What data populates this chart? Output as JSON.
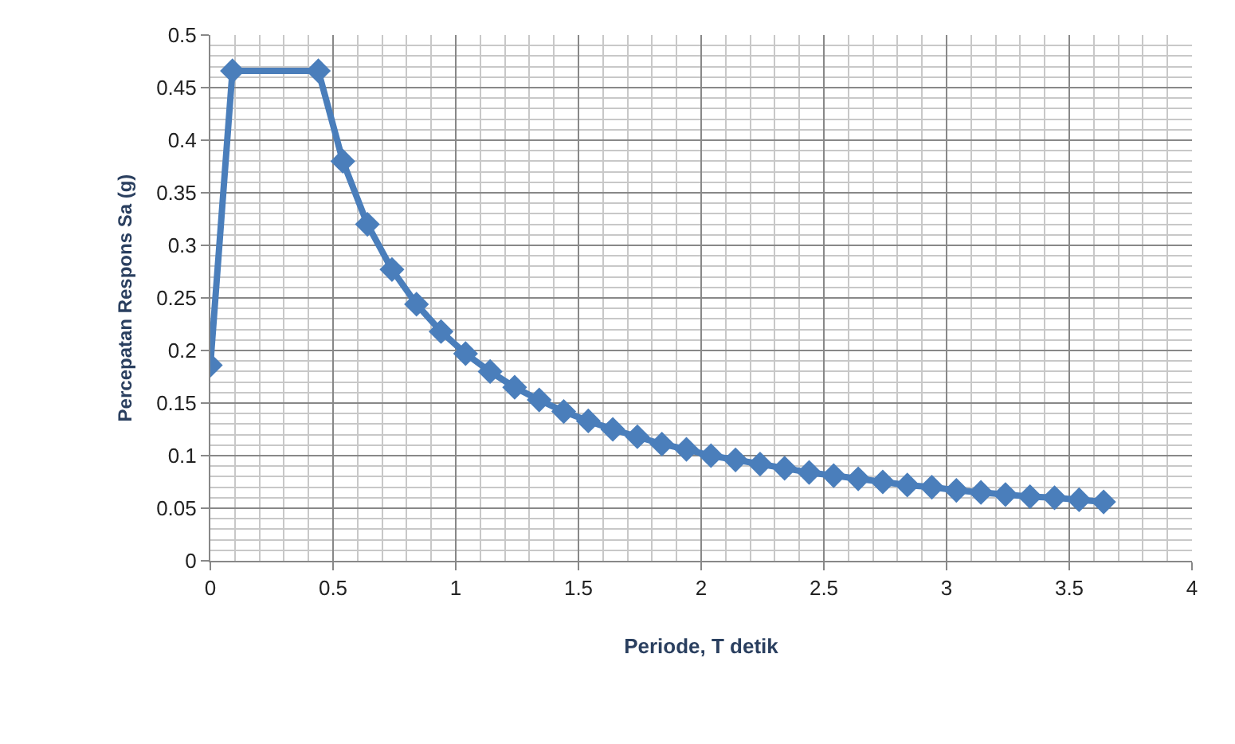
{
  "chart_data": {
    "type": "line",
    "xlabel": "Periode, T detik",
    "ylabel": "Percepatan Respons Sa (g)",
    "x": [
      0,
      0.09,
      0.44,
      0.54,
      0.64,
      0.74,
      0.84,
      0.94,
      1.04,
      1.14,
      1.24,
      1.34,
      1.44,
      1.54,
      1.64,
      1.74,
      1.84,
      1.94,
      2.04,
      2.14,
      2.24,
      2.34,
      2.44,
      2.54,
      2.64,
      2.74,
      2.84,
      2.94,
      3.04,
      3.14,
      3.24,
      3.34,
      3.44,
      3.54,
      3.64
    ],
    "series": [
      {
        "color": "#4a7ebb",
        "values": [
          0.186,
          0.466,
          0.466,
          0.38,
          0.32,
          0.277,
          0.244,
          0.218,
          0.197,
          0.18,
          0.165,
          0.153,
          0.142,
          0.133,
          0.125,
          0.118,
          0.111,
          0.106,
          0.1,
          0.096,
          0.092,
          0.088,
          0.084,
          0.081,
          0.078,
          0.075,
          0.072,
          0.07,
          0.067,
          0.065,
          0.063,
          0.061,
          0.06,
          0.058,
          0.056
        ]
      }
    ],
    "xlim": [
      0,
      4
    ],
    "xticks": [
      0,
      0.5,
      1,
      1.5,
      2,
      2.5,
      3,
      3.5,
      4
    ],
    "ylim": [
      0,
      0.5
    ],
    "yticks": [
      0,
      0.05,
      0.1,
      0.15,
      0.2,
      0.25,
      0.3,
      0.35,
      0.4,
      0.45,
      0.5
    ],
    "grid": true,
    "legend": false,
    "marker": "diamond",
    "line_style": "solid"
  }
}
